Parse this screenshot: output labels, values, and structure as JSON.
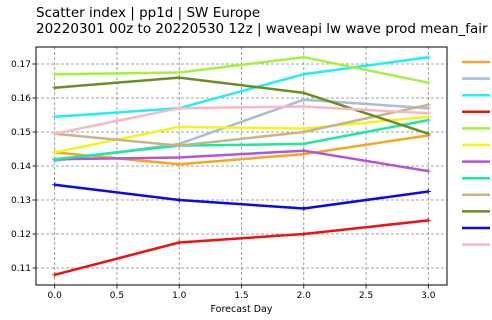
{
  "title_line1": "Scatter index  |  pp1d  |  SW Europe",
  "title_line2": "20220301 00z to 20220530 12z  |  waveapi lw wave prod mean_fair",
  "chart_data": {
    "type": "line",
    "xlabel": "Forecast Day",
    "ylabel": "",
    "xlim": [
      -0.15,
      3.15
    ],
    "ylim": [
      0.105,
      0.175
    ],
    "xticks": [
      0.0,
      0.5,
      1.0,
      1.5,
      2.0,
      2.5,
      3.0
    ],
    "xtick_labels": [
      "0.0",
      "0.5",
      "1.0",
      "1.5",
      "2.0",
      "2.5",
      "3.0"
    ],
    "yticks": [
      0.11,
      0.12,
      0.13,
      0.14,
      0.15,
      0.16,
      0.17
    ],
    "ytick_labels": [
      "0.11",
      "0.12",
      "0.13",
      "0.14",
      "0.15",
      "0.16",
      "0.17"
    ],
    "grid": true,
    "legend": "right-outside",
    "x": [
      0,
      1,
      2,
      3
    ],
    "series": [
      {
        "color": "#f5a623",
        "values": [
          0.144,
          0.1405,
          0.1435,
          0.149
        ]
      },
      {
        "color": "#a8bcd8",
        "values": [
          0.1415,
          0.1465,
          0.1595,
          0.157
        ]
      },
      {
        "color": "#1ff0f8",
        "values": [
          0.1545,
          0.157,
          0.167,
          0.172
        ]
      },
      {
        "color": "#ee1111",
        "values": [
          0.108,
          0.1175,
          0.12,
          0.124
        ]
      },
      {
        "color": "#a8f040",
        "values": [
          0.167,
          0.1675,
          0.172,
          0.1645
        ]
      },
      {
        "color": "#f4f41a",
        "values": [
          0.144,
          0.1515,
          0.151,
          0.1545
        ]
      },
      {
        "color": "#b355d5",
        "values": [
          0.142,
          0.1425,
          0.1445,
          0.1385
        ]
      },
      {
        "color": "#1ee8a0",
        "values": [
          0.142,
          0.146,
          0.1465,
          0.1535
        ]
      },
      {
        "color": "#c8b48a",
        "values": [
          0.1495,
          0.146,
          0.15,
          0.158
        ]
      },
      {
        "color": "#6b8e23",
        "values": [
          0.163,
          0.166,
          0.1615,
          0.1495
        ]
      },
      {
        "color": "#0a0ae8",
        "values": [
          0.1345,
          0.13,
          0.1275,
          0.1325
        ]
      },
      {
        "color": "#f8b8c4",
        "values": [
          0.1495,
          0.157,
          0.1575,
          0.1555
        ]
      }
    ]
  }
}
